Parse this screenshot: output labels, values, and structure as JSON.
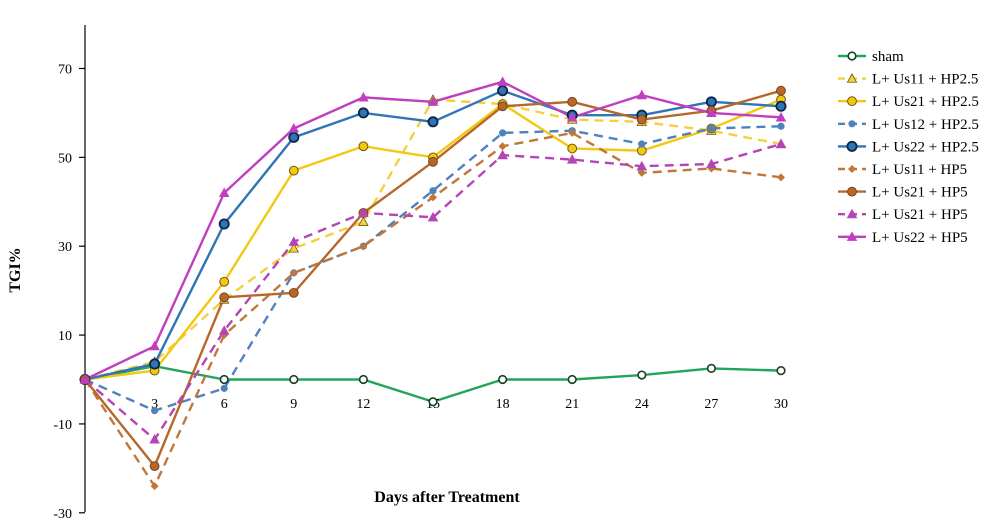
{
  "chart_data": {
    "type": "line",
    "title": "",
    "xlabel": "Days after Treatment",
    "ylabel": "TGI%",
    "x": [
      0,
      3,
      6,
      9,
      12,
      15,
      18,
      21,
      24,
      27,
      30
    ],
    "x_tick_labels": [
      "3",
      "6",
      "9",
      "12",
      "15",
      "18",
      "21",
      "24",
      "27",
      "30"
    ],
    "y_tick_labels": [
      "70",
      "50",
      "30",
      "10",
      "-10",
      "-30"
    ],
    "ylim": [
      -30,
      80
    ],
    "grid": false,
    "legend_position": "right",
    "series": [
      {
        "name": "sham",
        "color": "#22a55a",
        "dash": false,
        "marker": "circle-open",
        "values": [
          0,
          3,
          0,
          0,
          0,
          -5,
          0,
          0,
          1,
          2.5,
          2
        ]
      },
      {
        "name": "L+ Us11 + HP2.5",
        "color": "#f4d03f",
        "dash": true,
        "marker": "triangle",
        "values": [
          0,
          4,
          18,
          29.5,
          35.5,
          63,
          62,
          58.5,
          58,
          56,
          53
        ]
      },
      {
        "name": "L+ Us21 + HP2.5",
        "color": "#f2c811",
        "dash": false,
        "marker": "circle",
        "values": [
          0,
          2,
          22,
          47,
          52.5,
          50,
          62,
          52,
          51.5,
          56.5,
          63
        ]
      },
      {
        "name": "L+ Us12 + HP2.5",
        "color": "#4f81bd",
        "dash": true,
        "marker": "dot",
        "values": [
          0,
          -7,
          -2,
          24,
          30,
          42.5,
          55.5,
          56,
          53,
          56.5,
          57
        ]
      },
      {
        "name": "L+ Us22 + HP2.5",
        "color": "#2e75b6",
        "dash": false,
        "marker": "circle-dark",
        "values": [
          0,
          3.5,
          35,
          54.5,
          60,
          58,
          65,
          59.5,
          59.5,
          62.5,
          61.5
        ]
      },
      {
        "name": "L+ Us11 + HP5",
        "color": "#c0773a",
        "dash": true,
        "marker": "diamond",
        "values": [
          0,
          -24,
          10,
          24,
          30,
          41,
          52.5,
          55.5,
          46.5,
          47.5,
          45.5
        ]
      },
      {
        "name": "L+ Us21 + HP5",
        "color": "#b8672b",
        "dash": false,
        "marker": "circle",
        "values": [
          0,
          -19.5,
          18.5,
          19.5,
          37.5,
          49,
          61.5,
          62.5,
          58.5,
          60.5,
          65
        ]
      },
      {
        "name": "L+ Us21 + HP5",
        "color": "#b545b5",
        "dash": true,
        "marker": "triangle",
        "values": [
          0,
          -13.5,
          11,
          31,
          37.5,
          36.5,
          50.5,
          49.5,
          48,
          48.5,
          53
        ]
      },
      {
        "name": "L+ Us22 + HP5",
        "color": "#c03fbf",
        "dash": false,
        "marker": "triangle",
        "values": [
          0,
          7.5,
          42,
          56.5,
          63.5,
          62.5,
          67,
          59,
          64,
          60,
          59
        ]
      }
    ]
  }
}
